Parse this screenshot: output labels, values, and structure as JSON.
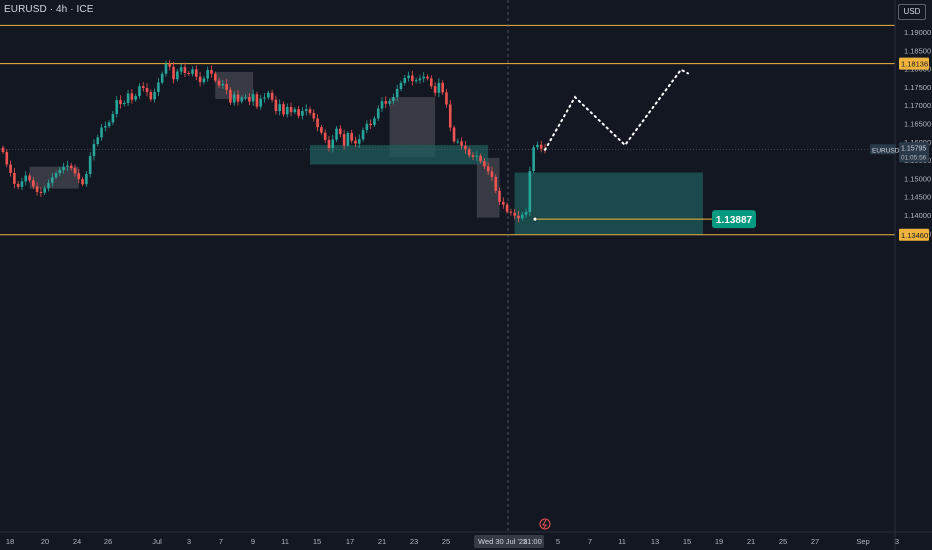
{
  "header": {
    "title": "EURUSD · 4h · ICE",
    "currency_button": "USD"
  },
  "chart_data": {
    "type": "candlestick",
    "symbol": "EURUSD",
    "timeframe": "4h",
    "exchange": "ICE",
    "ylim": [
      1.1325,
      1.1945
    ],
    "y_ticks": [
      "1.19000",
      "1.18500",
      "1.18000",
      "1.17500",
      "1.17000",
      "1.16500",
      "1.16000",
      "1.15500",
      "1.15000",
      "1.14500",
      "1.14000",
      "1.13500"
    ],
    "x_ticks": [
      "18",
      "20",
      "24",
      "26",
      "Jul",
      "3",
      "7",
      "9",
      "11",
      "15",
      "17",
      "21",
      "23",
      "25",
      "Wed 30 Jul '25",
      "21:00",
      "5",
      "7",
      "11",
      "13",
      "15",
      "19",
      "21",
      "25",
      "27",
      "Sep",
      "3"
    ],
    "cursor_time_label": "Wed 30 Jul '25",
    "cursor_time_sub": "21:00",
    "horizontal_levels": [
      {
        "price": 1.1918,
        "label": ""
      },
      {
        "price": 1.18136,
        "label": "1.18136"
      },
      {
        "price": 1.1346,
        "label": "1.13460"
      }
    ],
    "last_price": {
      "symbol": "EURUSD",
      "price": "1.15795",
      "countdown": "01:05:56"
    },
    "callout": {
      "price": "1.13887"
    },
    "candles_close": [
      1.1572,
      1.1538,
      1.1515,
      1.1485,
      1.1477,
      1.1492,
      1.1508,
      1.1495,
      1.1478,
      1.1463,
      1.1461,
      1.1473,
      1.1488,
      1.1503,
      1.1514,
      1.1523,
      1.1532,
      1.1535,
      1.1528,
      1.1514,
      1.1498,
      1.1484,
      1.1512,
      1.1561,
      1.1594,
      1.1612,
      1.1639,
      1.1643,
      1.1653,
      1.1676,
      1.1714,
      1.1703,
      1.1706,
      1.1732,
      1.1715,
      1.1725,
      1.1752,
      1.1747,
      1.1736,
      1.1716,
      1.1736,
      1.1762,
      1.1786,
      1.1813,
      1.1805,
      1.1771,
      1.1792,
      1.1804,
      1.1788,
      1.1786,
      1.1798,
      1.1778,
      1.1763,
      1.1773,
      1.1796,
      1.1786,
      1.1767,
      1.1754,
      1.1758,
      1.1742,
      1.1707,
      1.1729,
      1.171,
      1.1721,
      1.1722,
      1.171,
      1.173,
      1.1696,
      1.1718,
      1.1721,
      1.1734,
      1.1715,
      1.1684,
      1.1703,
      1.1675,
      1.1695,
      1.1681,
      1.1689,
      1.1671,
      1.1684,
      1.1689,
      1.1679,
      1.1664,
      1.164,
      1.1625,
      1.1605,
      1.1583,
      1.1606,
      1.1636,
      1.1621,
      1.159,
      1.1624,
      1.1603,
      1.1595,
      1.1607,
      1.1632,
      1.1649,
      1.1646,
      1.1664,
      1.1691,
      1.1711,
      1.1704,
      1.1711,
      1.1722,
      1.1744,
      1.1761,
      1.1774,
      1.1781,
      1.1766,
      1.1768,
      1.1773,
      1.1778,
      1.1773,
      1.1752,
      1.1734,
      1.1761,
      1.1735,
      1.1702,
      1.1639,
      1.1601,
      1.1601,
      1.1589,
      1.1579,
      1.1563,
      1.1559,
      1.1562,
      1.1547,
      1.1533,
      1.1519,
      1.1504,
      1.1466,
      1.1436,
      1.1428,
      1.1409,
      1.1406,
      1.1398,
      1.1391,
      1.1401,
      1.1408,
      1.152,
      1.1585,
      1.1592,
      1.1581,
      1.158
    ],
    "zones": [
      {
        "kind": "grey",
        "from": 1.1717,
        "to": 1.1791
      },
      {
        "kind": "grey",
        "from": 1.1558,
        "to": 1.1722
      },
      {
        "kind": "grey",
        "from": 1.1472,
        "to": 1.1532
      },
      {
        "kind": "grey",
        "from": 1.1393,
        "to": 1.1556
      },
      {
        "kind": "teal",
        "from": 1.1538,
        "to": 1.1591
      },
      {
        "kind": "teal",
        "from": 1.1347,
        "to": 1.1516
      }
    ],
    "projection_path": [
      1.1578,
      1.1722,
      1.1591,
      1.1797,
      1.1787
    ],
    "colors": {
      "background": "#131722",
      "up": "#26a69a",
      "down": "#ef5350",
      "level": "#f0b43c",
      "teal_zone": "#1f5c5b",
      "grey_zone": "#6b6d72",
      "label_green": "#089981"
    }
  }
}
